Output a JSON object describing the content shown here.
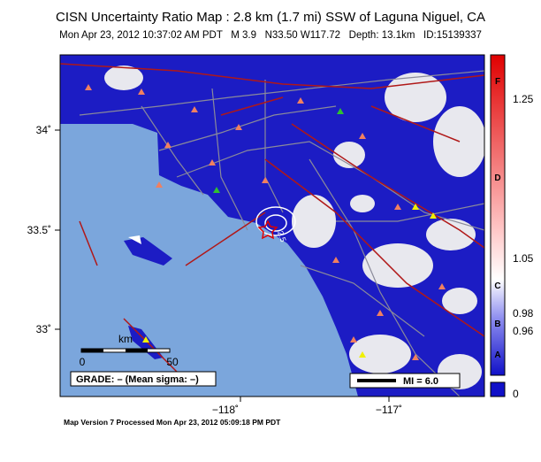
{
  "header": {
    "title": "CISN Uncertainty Ratio Map : 2.8 km (1.7 mi) SSW of Laguna Niguel, CA",
    "subtitle": "Mon Apr 23, 2012 10:37:02 AM PDT   M 3.9   N33.50 W117.72   Depth: 13.1km   ID:15139337"
  },
  "map": {
    "lat_labels": [
      "34˚",
      "33.5˚",
      "33˚"
    ],
    "lon_labels": [
      "−118˚",
      "−117˚"
    ],
    "scale_bar": {
      "unit": "km",
      "start": "0",
      "end": "50"
    },
    "grade": "GRADE: – (Mean sigma: –)",
    "mi_legend": "MI = 6.0",
    "contour_label": "2.5"
  },
  "colorbar": {
    "grades": [
      "F",
      "D",
      "C",
      "B",
      "A"
    ],
    "ticks": [
      "1.25",
      "1.05",
      "0.98",
      "0.96",
      "0"
    ]
  },
  "footer": "Map Version 7 Processed Mon Apr 23, 2012 05:09:18 PM PDT"
}
